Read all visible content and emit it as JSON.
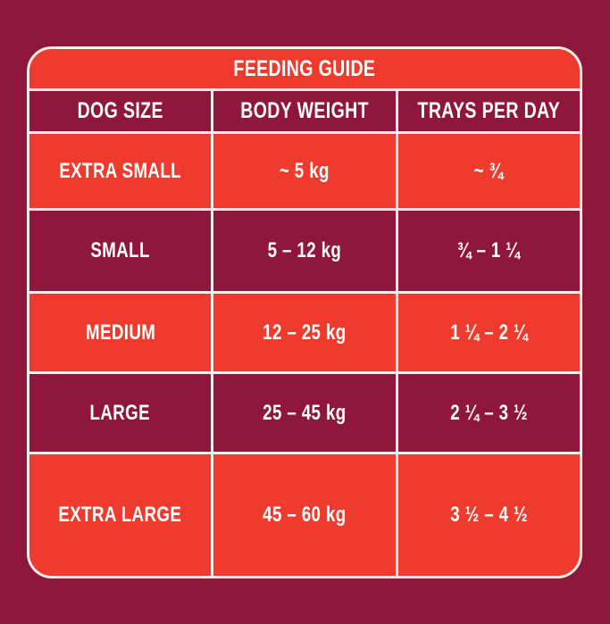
{
  "title": "FEEDING GUIDE",
  "table": {
    "headers": [
      "DOG SIZE",
      "BODY WEIGHT",
      "TRAYS PER DAY"
    ],
    "rows": [
      {
        "dog_size": "EXTRA SMALL",
        "body_weight": "~ 5 kg",
        "trays_per_day": "~ ¾"
      },
      {
        "dog_size": "SMALL",
        "body_weight": "5 – 12 kg",
        "trays_per_day": "¾ – 1 ¼"
      },
      {
        "dog_size": "MEDIUM",
        "body_weight": "12 – 25 kg",
        "trays_per_day": "1 ¼ – 2 ¼"
      },
      {
        "dog_size": "LARGE",
        "body_weight": "25 – 45 kg",
        "trays_per_day": "2 ¼ – 3 ½"
      },
      {
        "dog_size": "EXTRA LARGE",
        "body_weight": "45 – 60 kg",
        "trays_per_day": "3 ½ – 4 ½"
      }
    ]
  },
  "chart_data": {
    "type": "table",
    "title": "FEEDING GUIDE",
    "columns": [
      "DOG SIZE",
      "BODY WEIGHT",
      "TRAYS PER DAY"
    ],
    "rows": [
      [
        "EXTRA SMALL",
        "~ 5 kg",
        "~ ¾"
      ],
      [
        "SMALL",
        "5 – 12 kg",
        "¾ – 1 ¼"
      ],
      [
        "MEDIUM",
        "12 – 25 kg",
        "1 ¼ – 2 ¼"
      ],
      [
        "LARGE",
        "25 – 45 kg",
        "2 ¼ – 3 ½"
      ],
      [
        "EXTRA LARGE",
        "45 – 60 kg",
        "3 ½ – 4 ½"
      ]
    ],
    "body_weight_kg_ranges": [
      [
        null,
        5
      ],
      [
        5,
        12
      ],
      [
        12,
        25
      ],
      [
        25,
        45
      ],
      [
        45,
        60
      ]
    ],
    "trays_per_day_ranges": [
      [
        null,
        0.75
      ],
      [
        0.75,
        1.25
      ],
      [
        1.25,
        2.25
      ],
      [
        2.25,
        3.5
      ],
      [
        3.5,
        4.5
      ]
    ]
  },
  "colors": {
    "background_maroon": "#8E173B",
    "accent_red": "#EF3B2D",
    "divider_white": "#F6EEEB",
    "text_white": "#FFFFFF"
  }
}
